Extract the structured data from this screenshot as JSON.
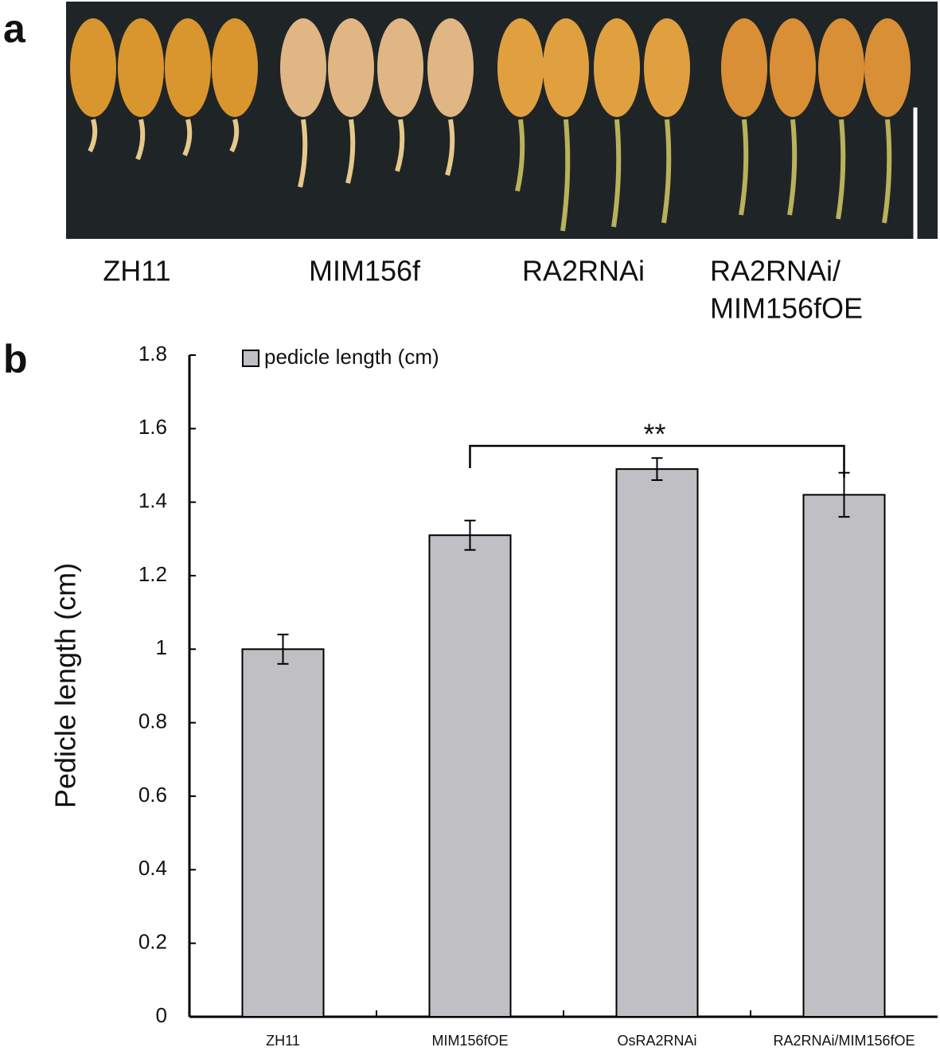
{
  "panel_a": {
    "label": "a",
    "labels": [
      "ZH11",
      "MIM156f",
      "RA2RNAi",
      "RA2RNAi/",
      "MIM156fOE"
    ]
  },
  "panel_b": {
    "label": "b"
  },
  "chart_data": {
    "type": "bar",
    "y_label": "Pedicle length (cm)",
    "categories": [
      "ZH11",
      "MIM156fOE",
      "OsRA2RNAi",
      "RA2RNAi/MIM156fOE"
    ],
    "series": [
      {
        "name": "pedicle length (cm)",
        "color": "#c0c0c4",
        "values": [
          1.0,
          1.31,
          1.49,
          1.42
        ],
        "errors": [
          0.04,
          0.04,
          0.03,
          0.06
        ]
      }
    ],
    "ylim": [
      0,
      1.8
    ],
    "yticks": [
      0,
      0.2,
      0.4,
      0.6,
      0.8,
      1,
      1.2,
      1.4,
      1.6,
      1.8
    ],
    "annotation": "**",
    "legend": "top-left"
  }
}
